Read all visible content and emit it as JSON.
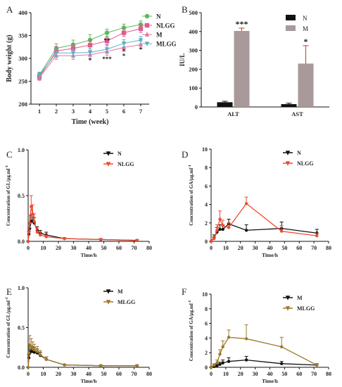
{
  "chart_data": [
    {
      "panel": "A",
      "type": "line",
      "xlabel": "Time (week)",
      "ylabel": "Body weight (g)",
      "x": [
        1,
        2,
        3,
        4,
        5,
        6,
        7
      ],
      "xlim": [
        0.5,
        7.5
      ],
      "ylim": [
        200,
        400
      ],
      "yticks": [
        200,
        250,
        300,
        350,
        400
      ],
      "legend_position": "top-right",
      "series": [
        {
          "name": "N",
          "color": "#5cb85c",
          "marker": "circle",
          "values": [
            264,
            322,
            330,
            340,
            356,
            367,
            374
          ],
          "errors": [
            6,
            10,
            10,
            12,
            8,
            8,
            8
          ]
        },
        {
          "name": "NLGG",
          "color": "#e05a8a",
          "marker": "square",
          "values": [
            259,
            316,
            322,
            329,
            338,
            356,
            365
          ],
          "errors": [
            6,
            10,
            10,
            12,
            8,
            8,
            8
          ]
        },
        {
          "name": "M",
          "color": "#e8739a",
          "marker": "triangle-up",
          "values": [
            258,
            306,
            306,
            308,
            315,
            324,
            330
          ],
          "errors": [
            6,
            8,
            8,
            8,
            8,
            8,
            8
          ]
        },
        {
          "name": "MLGG",
          "color": "#5ab0c8",
          "marker": "triangle-down",
          "values": [
            263,
            312,
            312,
            313,
            320,
            333,
            340
          ],
          "errors": [
            6,
            8,
            8,
            8,
            8,
            8,
            8
          ]
        }
      ],
      "annotations": [
        {
          "x": 4,
          "y": 291,
          "text": "*"
        },
        {
          "x": 5,
          "y": 335,
          "text": "**"
        },
        {
          "x": 5,
          "y": 294,
          "text": "***"
        },
        {
          "x": 6,
          "y": 301,
          "text": "*"
        },
        {
          "x": 6,
          "y": 311,
          "text": "*"
        },
        {
          "x": 7,
          "y": 315,
          "text": "*"
        }
      ]
    },
    {
      "panel": "B",
      "type": "bar",
      "categories": [
        "ALT",
        "AST"
      ],
      "ylabel": "IU/L",
      "ylim": [
        0,
        500
      ],
      "yticks": [
        0,
        100,
        200,
        300,
        400,
        500
      ],
      "legend_position": "top-right",
      "series": [
        {
          "name": "N",
          "color": "#111111",
          "values": [
            25,
            15
          ],
          "errors": [
            5,
            5
          ]
        },
        {
          "name": "M",
          "color": "#a89a9a",
          "values": [
            403,
            230
          ],
          "errors": [
            15,
            95
          ]
        }
      ],
      "annotations": [
        {
          "category": "ALT",
          "text": "***"
        },
        {
          "category": "AST",
          "text": "*"
        }
      ]
    },
    {
      "panel": "C",
      "type": "line",
      "xlabel": "Time/h",
      "ylabel": "Concentration of GL/μg.ml",
      "xlim": [
        0,
        80
      ],
      "xticks": [
        0,
        10,
        20,
        30,
        40,
        50,
        60,
        70,
        80
      ],
      "ylim": [
        0,
        1.0
      ],
      "yticks": [
        0.0,
        0.5,
        1.0
      ],
      "legend_position": "top-right",
      "series": [
        {
          "name": "N",
          "color": "#111111",
          "x": [
            0,
            0.5,
            1,
            2,
            3,
            4,
            6,
            8,
            12,
            24,
            48,
            72
          ],
          "values": [
            0,
            0.08,
            0.14,
            0.22,
            0.22,
            0.2,
            0.12,
            0.09,
            0.07,
            0.03,
            0.02,
            0.01
          ],
          "errors": [
            0,
            0.03,
            0.05,
            0.07,
            0.07,
            0.06,
            0.04,
            0.03,
            0.03,
            0.01,
            0.01,
            0.01
          ]
        },
        {
          "name": "NLGG",
          "color": "#f04a30",
          "x": [
            0,
            0.5,
            1,
            2,
            3,
            4,
            6,
            8,
            12,
            24,
            48,
            72
          ],
          "values": [
            0,
            0.1,
            0.2,
            0.38,
            0.3,
            0.22,
            0.1,
            0.07,
            0.05,
            0.03,
            0.02,
            0.01
          ],
          "errors": [
            0,
            0.05,
            0.08,
            0.12,
            0.1,
            0.08,
            0.04,
            0.03,
            0.02,
            0.01,
            0.01,
            0.01
          ]
        }
      ]
    },
    {
      "panel": "D",
      "type": "line",
      "xlabel": "Time/h",
      "ylabel": "Concentration of GA/μg.ml",
      "xlim": [
        0,
        80
      ],
      "xticks": [
        0,
        10,
        20,
        30,
        40,
        50,
        60,
        70,
        80
      ],
      "ylim": [
        0,
        10
      ],
      "yticks": [
        0,
        2,
        4,
        6,
        8,
        10
      ],
      "legend_position": "top-right",
      "series": [
        {
          "name": "N",
          "color": "#111111",
          "x": [
            0,
            2,
            4,
            6,
            8,
            12,
            24,
            48,
            72
          ],
          "values": [
            0,
            0.4,
            1.0,
            1.3,
            1.3,
            1.9,
            1.2,
            1.4,
            0.9
          ],
          "errors": [
            0,
            0.3,
            0.5,
            0.5,
            0.5,
            0.5,
            0.6,
            0.7,
            0.4
          ]
        },
        {
          "name": "NLGG",
          "color": "#f04a30",
          "x": [
            0,
            2,
            4,
            6,
            8,
            12,
            24,
            48,
            72
          ],
          "values": [
            0,
            0.3,
            1.2,
            2.4,
            1.7,
            1.5,
            4.1,
            1.1,
            0.6
          ],
          "errors": [
            0,
            0.2,
            0.6,
            0.9,
            0.6,
            0.5,
            0.7,
            0.6,
            0.3
          ]
        }
      ]
    },
    {
      "panel": "E",
      "type": "line",
      "xlabel": "Time/h",
      "ylabel": "Concentration of GL/μg.ml",
      "xlim": [
        0,
        80
      ],
      "xticks": [
        0,
        10,
        20,
        30,
        40,
        50,
        60,
        70,
        80
      ],
      "ylim": [
        0,
        1.0
      ],
      "yticks": [
        0.0,
        0.5,
        1.0
      ],
      "legend_position": "top-right",
      "series": [
        {
          "name": "M",
          "color": "#111111",
          "x": [
            0,
            0.5,
            1,
            2,
            3,
            4,
            6,
            8,
            12,
            24,
            48,
            72
          ],
          "values": [
            0,
            0.12,
            0.18,
            0.2,
            0.2,
            0.19,
            0.18,
            0.15,
            0.1,
            0.03,
            0.02,
            0.02
          ],
          "errors": [
            0,
            0.04,
            0.05,
            0.06,
            0.06,
            0.06,
            0.05,
            0.04,
            0.03,
            0.01,
            0.01,
            0.01
          ]
        },
        {
          "name": "MLGG",
          "color": "#a0782a",
          "x": [
            0,
            0.5,
            1,
            2,
            3,
            4,
            6,
            8,
            12,
            24,
            48,
            72
          ],
          "values": [
            0,
            0.18,
            0.28,
            0.26,
            0.24,
            0.22,
            0.2,
            0.16,
            0.1,
            0.03,
            0.02,
            0.02
          ],
          "errors": [
            0,
            0.1,
            0.12,
            0.1,
            0.08,
            0.07,
            0.06,
            0.05,
            0.03,
            0.01,
            0.01,
            0.01
          ]
        }
      ]
    },
    {
      "panel": "F",
      "type": "line",
      "xlabel": "Time/h",
      "ylabel": "Concentration of GA/μg.ml",
      "xlim": [
        0,
        80
      ],
      "xticks": [
        0,
        10,
        20,
        30,
        40,
        50,
        60,
        70,
        80
      ],
      "ylim": [
        0,
        10
      ],
      "yticks": [
        0,
        2,
        4,
        6,
        8,
        10
      ],
      "legend_position": "top-right",
      "series": [
        {
          "name": "M",
          "color": "#111111",
          "x": [
            0,
            2,
            4,
            6,
            8,
            12,
            24,
            48,
            72
          ],
          "values": [
            0,
            0.1,
            0.2,
            0.4,
            0.6,
            0.8,
            1.0,
            0.5,
            0.3
          ],
          "errors": [
            0,
            0.1,
            0.2,
            0.3,
            0.4,
            0.5,
            0.5,
            0.3,
            0.2
          ]
        },
        {
          "name": "MLGG",
          "color": "#a0782a",
          "x": [
            0,
            2,
            4,
            6,
            8,
            12,
            24,
            48,
            72
          ],
          "values": [
            0,
            0.3,
            0.6,
            1.8,
            2.8,
            4.1,
            3.9,
            2.8,
            0.3
          ],
          "errors": [
            0,
            0.2,
            0.4,
            0.6,
            0.8,
            1.0,
            1.9,
            1.3,
            0.2
          ]
        }
      ]
    }
  ],
  "panel_labels": [
    "A",
    "B",
    "C",
    "D",
    "E",
    "F"
  ],
  "superscript": "-1"
}
